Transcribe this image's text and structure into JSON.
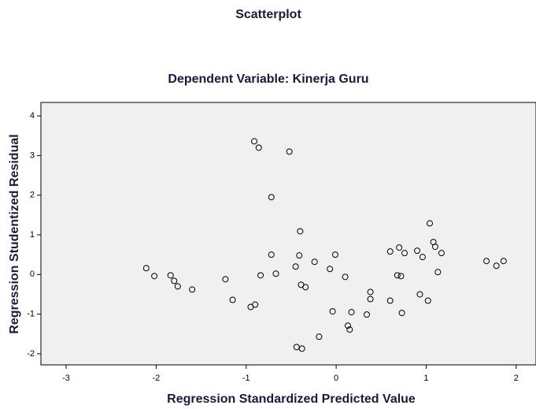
{
  "chart_data": {
    "type": "scatter",
    "title": "Scatterplot",
    "subtitle": "Dependent Variable: Kinerja Guru",
    "x_label": "Regression Standardized Predicted Value",
    "y_label": "Regression Studentized Residual",
    "x": [
      -0.91,
      -0.86,
      -0.52,
      -0.72,
      1.04,
      -0.4,
      1.08,
      1.1,
      0.7,
      0.9,
      0.6,
      0.76,
      1.17,
      -0.72,
      -0.41,
      -0.01,
      0.96,
      -0.24,
      1.67,
      1.86,
      -2.11,
      -0.45,
      -0.07,
      1.78,
      -2.02,
      -0.67,
      -0.84,
      -1.84,
      0.68,
      0.72,
      1.13,
      0.1,
      -1.8,
      -1.23,
      -1.76,
      -1.6,
      -0.39,
      -0.34,
      0.38,
      -1.15,
      0.6,
      0.38,
      0.93,
      1.02,
      -0.9,
      -0.95,
      -0.04,
      0.17,
      0.34,
      0.73,
      0.13,
      0.15,
      -0.19,
      -0.44,
      -0.38
    ],
    "values": [
      3.36,
      3.2,
      3.1,
      1.95,
      1.29,
      1.09,
      0.82,
      0.7,
      0.68,
      0.6,
      0.58,
      0.54,
      0.54,
      0.5,
      0.48,
      0.5,
      0.44,
      0.32,
      0.34,
      0.34,
      0.16,
      0.2,
      0.14,
      0.22,
      -0.04,
      0.02,
      -0.02,
      -0.02,
      -0.02,
      -0.04,
      0.06,
      -0.06,
      -0.16,
      -0.12,
      -0.3,
      -0.38,
      -0.26,
      -0.32,
      -0.44,
      -0.64,
      -0.66,
      -0.62,
      -0.5,
      -0.66,
      -0.76,
      -0.82,
      -0.93,
      -0.95,
      -1.01,
      -0.97,
      -1.29,
      -1.39,
      -1.57,
      -1.83,
      -1.87
    ],
    "color": "#000000",
    "xlim": [
      -3.28,
      2.22
    ],
    "xticks": [
      -3,
      -2,
      -1,
      0,
      1,
      2
    ],
    "ylim": [
      -2.28,
      4.34
    ],
    "yticks": [
      -2,
      -1,
      0,
      1,
      2,
      3,
      4
    ]
  }
}
